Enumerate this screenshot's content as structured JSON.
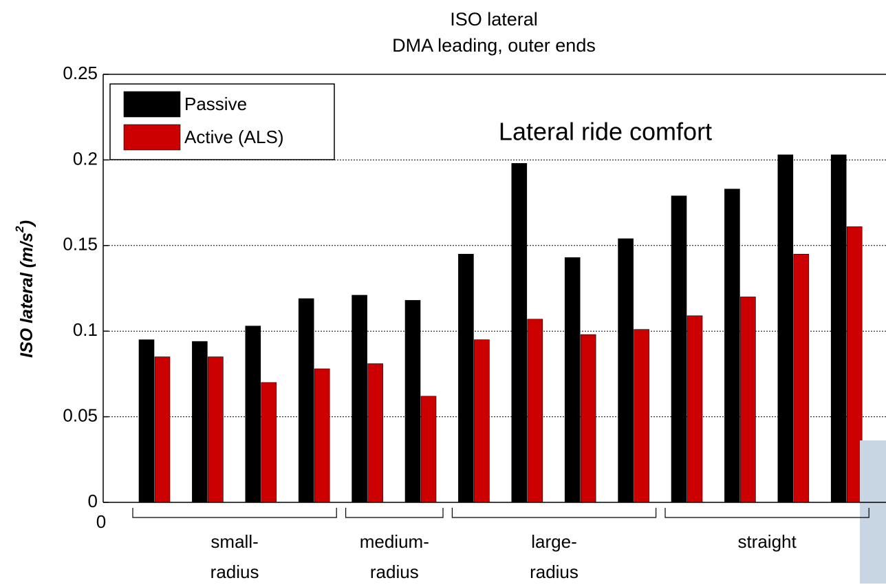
{
  "chart_data": {
    "type": "bar",
    "title": [
      "ISO lateral",
      "DMA leading, outer ends"
    ],
    "annotation": "Lateral ride comfort",
    "ylabel": [
      "ISO lateral (m/s",
      "2",
      ")"
    ],
    "x_origin_label": "0",
    "categories": [
      null,
      null,
      null,
      null,
      null,
      null,
      null,
      null,
      null,
      null,
      null,
      null,
      null,
      null
    ],
    "groups": [
      {
        "label": [
          "small-",
          "radius"
        ],
        "size": 4
      },
      {
        "label": [
          "medium-",
          "radius"
        ],
        "size": 2
      },
      {
        "label": [
          "large-",
          "radius"
        ],
        "size": 4
      },
      {
        "label": [
          "straight"
        ],
        "size": 4
      }
    ],
    "series": [
      {
        "name": "Passive",
        "color": "#000000",
        "values": [
          0.095,
          0.094,
          0.103,
          0.119,
          0.121,
          0.118,
          0.145,
          0.198,
          0.143,
          0.154,
          0.179,
          0.183,
          0.203,
          0.203
        ]
      },
      {
        "name": "Active (ALS)",
        "color": "#cc0000",
        "values": [
          0.085,
          0.085,
          0.07,
          0.078,
          0.081,
          0.062,
          0.095,
          0.107,
          0.098,
          0.101,
          0.109,
          0.12,
          0.145,
          0.161
        ]
      }
    ],
    "ylim": [
      0,
      0.25
    ],
    "yticks": [
      0,
      0.05,
      0.1,
      0.15,
      0.2,
      0.25
    ],
    "grid": true,
    "legend": "upper left"
  }
}
